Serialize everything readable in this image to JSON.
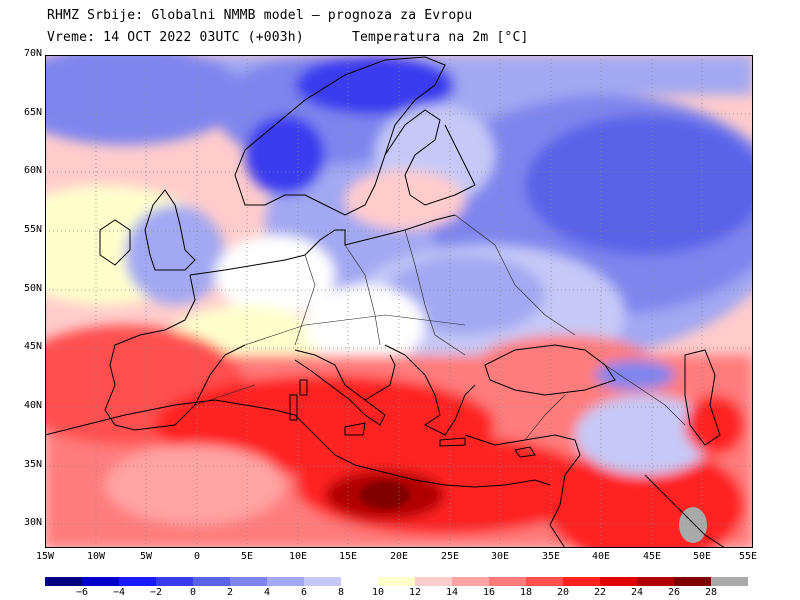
{
  "header": {
    "line1": "RHMZ Srbije: Globalni NMMB model — prognoza za Evropu",
    "line2": "Vreme: 14 OCT 2022 03UTC (+003h)",
    "line3": "Temperatura na 2m [°C]"
  },
  "map": {
    "projection": "lat-lon",
    "lon_range": [
      -15,
      55
    ],
    "lat_range": [
      28,
      70
    ],
    "lat_labels": [
      "70N",
      "65N",
      "60N",
      "55N",
      "50N",
      "45N",
      "40N",
      "35N",
      "30N"
    ],
    "lon_labels": [
      "15W",
      "10W",
      "5W",
      "0",
      "5E",
      "10E",
      "15E",
      "20E",
      "25E",
      "30E",
      "35E",
      "40E",
      "45E",
      "50E",
      "55E"
    ],
    "gridlines": "dotted"
  },
  "colorbar": {
    "colors": [
      "#000080",
      "#0000cd",
      "#1a1aff",
      "#3a3aef",
      "#5a62e8",
      "#7f85ee",
      "#a3a8f2",
      "#c6c9f7",
      "#ffffff",
      "#ffffcc",
      "#ffcccc",
      "#ffa3a3",
      "#ff7b7b",
      "#ff5050",
      "#ff2020",
      "#e00000",
      "#b00000",
      "#800000",
      "#aaaaaa"
    ],
    "labels": [
      "−6",
      "−4",
      "−2",
      "0",
      "2",
      "4",
      "6",
      "8",
      "10",
      "12",
      "14",
      "16",
      "18",
      "20",
      "22",
      "24",
      "26",
      "28"
    ]
  }
}
